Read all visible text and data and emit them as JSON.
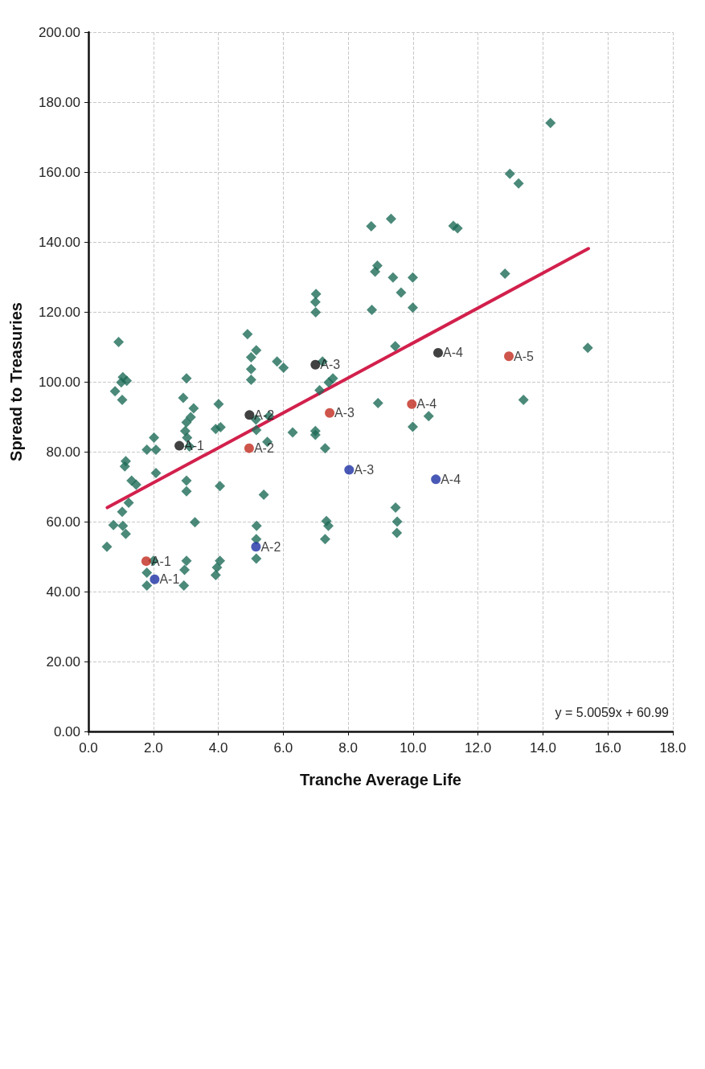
{
  "chart_data": {
    "type": "scatter",
    "xlabel": "Tranche Average Life",
    "ylabel": "Spread to Treasuries",
    "xlim": [
      0,
      18
    ],
    "ylim": [
      0,
      200
    ],
    "xticks": [
      {
        "value": 0,
        "label": "0.0"
      },
      {
        "value": 2,
        "label": "2.0"
      },
      {
        "value": 4,
        "label": "4.0"
      },
      {
        "value": 6,
        "label": "6.0"
      },
      {
        "value": 8,
        "label": "8.0"
      },
      {
        "value": 10,
        "label": "10.0"
      },
      {
        "value": 12,
        "label": "12.0"
      },
      {
        "value": 14,
        "label": "14.0"
      },
      {
        "value": 16,
        "label": "16.0"
      },
      {
        "value": 18,
        "label": "18.0"
      }
    ],
    "yticks": [
      {
        "value": 0,
        "label": "0.00"
      },
      {
        "value": 20,
        "label": "20.00"
      },
      {
        "value": 40,
        "label": "40.00"
      },
      {
        "value": 60,
        "label": "60.00"
      },
      {
        "value": 80,
        "label": "80.00"
      },
      {
        "value": 100,
        "label": "100.00"
      },
      {
        "value": 120,
        "label": "120.00"
      },
      {
        "value": 140,
        "label": "140.00"
      },
      {
        "value": 160,
        "label": "160.00"
      },
      {
        "value": 180,
        "label": "180.00"
      },
      {
        "value": 200,
        "label": "200.00"
      }
    ],
    "grid": true,
    "series": [
      {
        "color": "#1e6b57",
        "marker": "diamond",
        "x": [
          15.38,
          14.23,
          13.4,
          13.25,
          12.98,
          12.83,
          11.37,
          11.24,
          10.48,
          9.99,
          9.99,
          9.99,
          9.63,
          9.32,
          9.38,
          9.45,
          9.46,
          9.51,
          9.5,
          8.92,
          8.9,
          8.83,
          8.71,
          8.73,
          7.53,
          7.4,
          7.29,
          7.33,
          7.39,
          7.29,
          7.21,
          7.12,
          7.01,
          6.99,
          7.0,
          6.99,
          6.99,
          6.29,
          6.01,
          5.81,
          5.51,
          5.4,
          5.56,
          5.17,
          5.17,
          5.16,
          5.18,
          5.17,
          5.17,
          4.9,
          5.01,
          5.01,
          5.01,
          4.01,
          4.07,
          3.92,
          4.05,
          4.05,
          3.96,
          3.92,
          3.02,
          2.92,
          3.24,
          3.15,
          3.02,
          2.98,
          3.04,
          3.11,
          3.02,
          3.02,
          3.28,
          3.02,
          2.96,
          2.94,
          2.02,
          2.08,
          1.8,
          2.08,
          2.0,
          1.8,
          1.8,
          1.47,
          1.33,
          1.15,
          1.12,
          1.24,
          1.04,
          1.06,
          1.15,
          1.18,
          1.06,
          0.93,
          1.04,
          1.01,
          0.82,
          0.77,
          0.57
        ],
        "values": [
          109.7,
          174.0,
          94.8,
          156.7,
          159.5,
          130.9,
          143.9,
          144.6,
          90.2,
          87.1,
          129.8,
          121.2,
          125.5,
          146.6,
          129.8,
          110.2,
          64.0,
          60.0,
          56.8,
          93.9,
          133.2,
          131.5,
          144.5,
          120.6,
          101.0,
          99.8,
          81.0,
          60.2,
          58.8,
          55.0,
          105.8,
          97.6,
          125.1,
          122.8,
          119.9,
          85.9,
          84.8,
          85.5,
          104.0,
          105.8,
          82.8,
          67.7,
          90.2,
          109.0,
          86.2,
          89.2,
          58.8,
          55.0,
          49.4,
          113.6,
          107.0,
          103.6,
          100.6,
          93.6,
          87.0,
          86.5,
          70.2,
          48.8,
          46.9,
          44.7,
          101.0,
          95.4,
          92.4,
          89.9,
          88.4,
          85.9,
          84.0,
          81.5,
          71.7,
          68.7,
          59.8,
          48.8,
          46.2,
          41.7,
          84.0,
          80.6,
          80.6,
          73.9,
          48.8,
          45.4,
          41.7,
          70.6,
          71.7,
          77.3,
          75.8,
          65.4,
          62.8,
          58.8,
          56.5,
          100.3,
          101.3,
          111.4,
          94.8,
          99.8,
          97.3,
          59.0,
          52.8
        ]
      },
      {
        "color": "#c22a1e",
        "marker": "circle",
        "x": [
          1.78,
          4.95,
          7.43,
          9.96,
          12.95
        ],
        "values": [
          48.7,
          81.0,
          91.1,
          93.6,
          107.3
        ]
      },
      {
        "color": "#111111",
        "marker": "circle",
        "x": [
          2.8,
          4.96,
          6.99,
          10.77
        ],
        "values": [
          81.7,
          90.5,
          104.9,
          108.3
        ]
      },
      {
        "color": "#1c2fa3",
        "marker": "circle",
        "x": [
          2.04,
          5.16,
          8.03,
          10.7
        ],
        "values": [
          43.5,
          52.8,
          74.8,
          72.1
        ]
      },
      {
        "type": "line",
        "color": "#d2204c",
        "marker": "none",
        "line_style": "solid",
        "x": [
          0.58,
          15.4
        ],
        "values": [
          64.0,
          138.1
        ]
      }
    ],
    "annotations": [
      "y = 5.0059x + 60.99",
      {
        "text": "A-1",
        "x": 1.78,
        "y": 48.7
      },
      {
        "text": "A-2",
        "x": 4.95,
        "y": 81.0
      },
      {
        "text": "A-3",
        "x": 7.43,
        "y": 91.1
      },
      {
        "text": "A-4",
        "x": 9.96,
        "y": 93.6
      },
      {
        "text": "A-5",
        "x": 12.95,
        "y": 107.3
      },
      {
        "text": "A-1",
        "x": 2.8,
        "y": 81.7
      },
      {
        "text": "A-2",
        "x": 4.96,
        "y": 90.5
      },
      {
        "text": "A-3",
        "x": 6.99,
        "y": 104.9
      },
      {
        "text": "A-4",
        "x": 10.77,
        "y": 108.3
      },
      {
        "text": "A-1",
        "x": 2.04,
        "y": 43.5
      },
      {
        "text": "A-2",
        "x": 5.16,
        "y": 52.8
      },
      {
        "text": "A-3",
        "x": 8.03,
        "y": 74.8
      },
      {
        "text": "A-4",
        "x": 10.7,
        "y": 72.1
      }
    ]
  }
}
